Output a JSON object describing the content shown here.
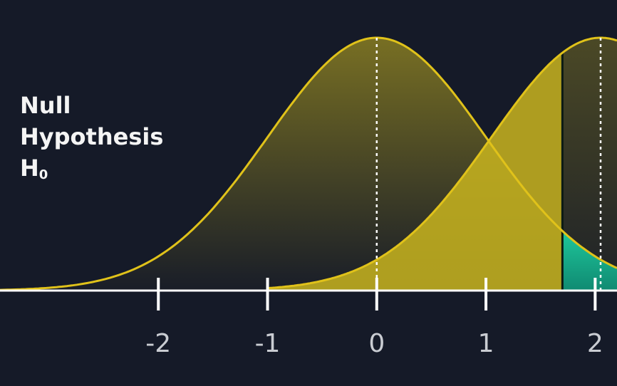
{
  "chart_data": {
    "type": "area",
    "title": "",
    "label": {
      "line1": "Null",
      "line2": "Hypothesis",
      "line3_main": "H",
      "line3_sub": "0"
    },
    "x_ticks": [
      -2,
      -1,
      0,
      1,
      2
    ],
    "x_tick_labels": [
      "-2",
      "-1",
      "0",
      "1",
      "2"
    ],
    "xlim": [
      -3.45,
      2.2
    ],
    "series": [
      {
        "mean": 0,
        "sd": 1,
        "shaded_from": -3.45
      },
      {
        "mean": 2.05,
        "sd": 1,
        "shaded_from": -1
      }
    ],
    "critical_value": 1.7,
    "colors": {
      "background": "#151a28",
      "curve": "#e0c21a",
      "fill": "#c9b51f",
      "region": "#18a88a",
      "axis": "#ffffff"
    }
  }
}
